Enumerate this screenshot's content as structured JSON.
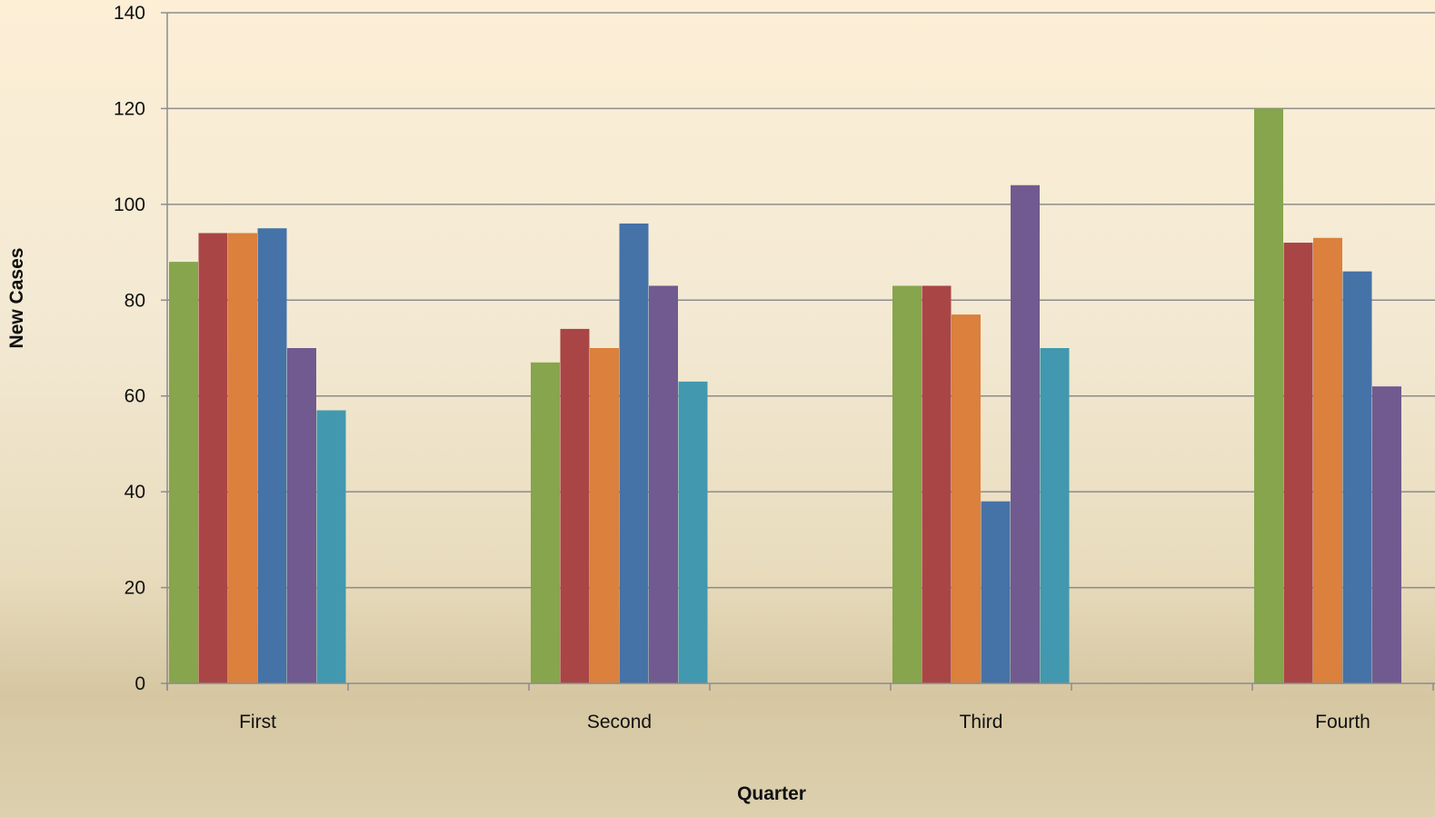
{
  "chart_data": {
    "type": "bar",
    "categories": [
      "First",
      "Second",
      "Third",
      "Fourth"
    ],
    "series": [
      {
        "color": "#86a54c",
        "values": [
          88,
          67,
          83,
          120
        ]
      },
      {
        "color": "#a94645",
        "values": [
          94,
          74,
          83,
          92
        ]
      },
      {
        "color": "#db803d",
        "values": [
          94,
          70,
          77,
          93
        ]
      },
      {
        "color": "#4572a7",
        "values": [
          95,
          96,
          38,
          86
        ]
      },
      {
        "color": "#715a8f",
        "values": [
          70,
          83,
          104,
          62
        ]
      },
      {
        "color": "#4198af",
        "values": [
          57,
          63,
          70,
          null
        ]
      }
    ],
    "title": "",
    "xlabel": "Quarter",
    "ylabel": "New Cases",
    "ylim": [
      0,
      140
    ],
    "yticks": [
      0,
      20,
      40,
      60,
      80,
      100,
      120,
      140
    ],
    "grid": true,
    "legend": "none",
    "colors": {
      "gridline": "#8c8c8c",
      "axis": "#8c8c8c",
      "text": "#111111"
    }
  }
}
